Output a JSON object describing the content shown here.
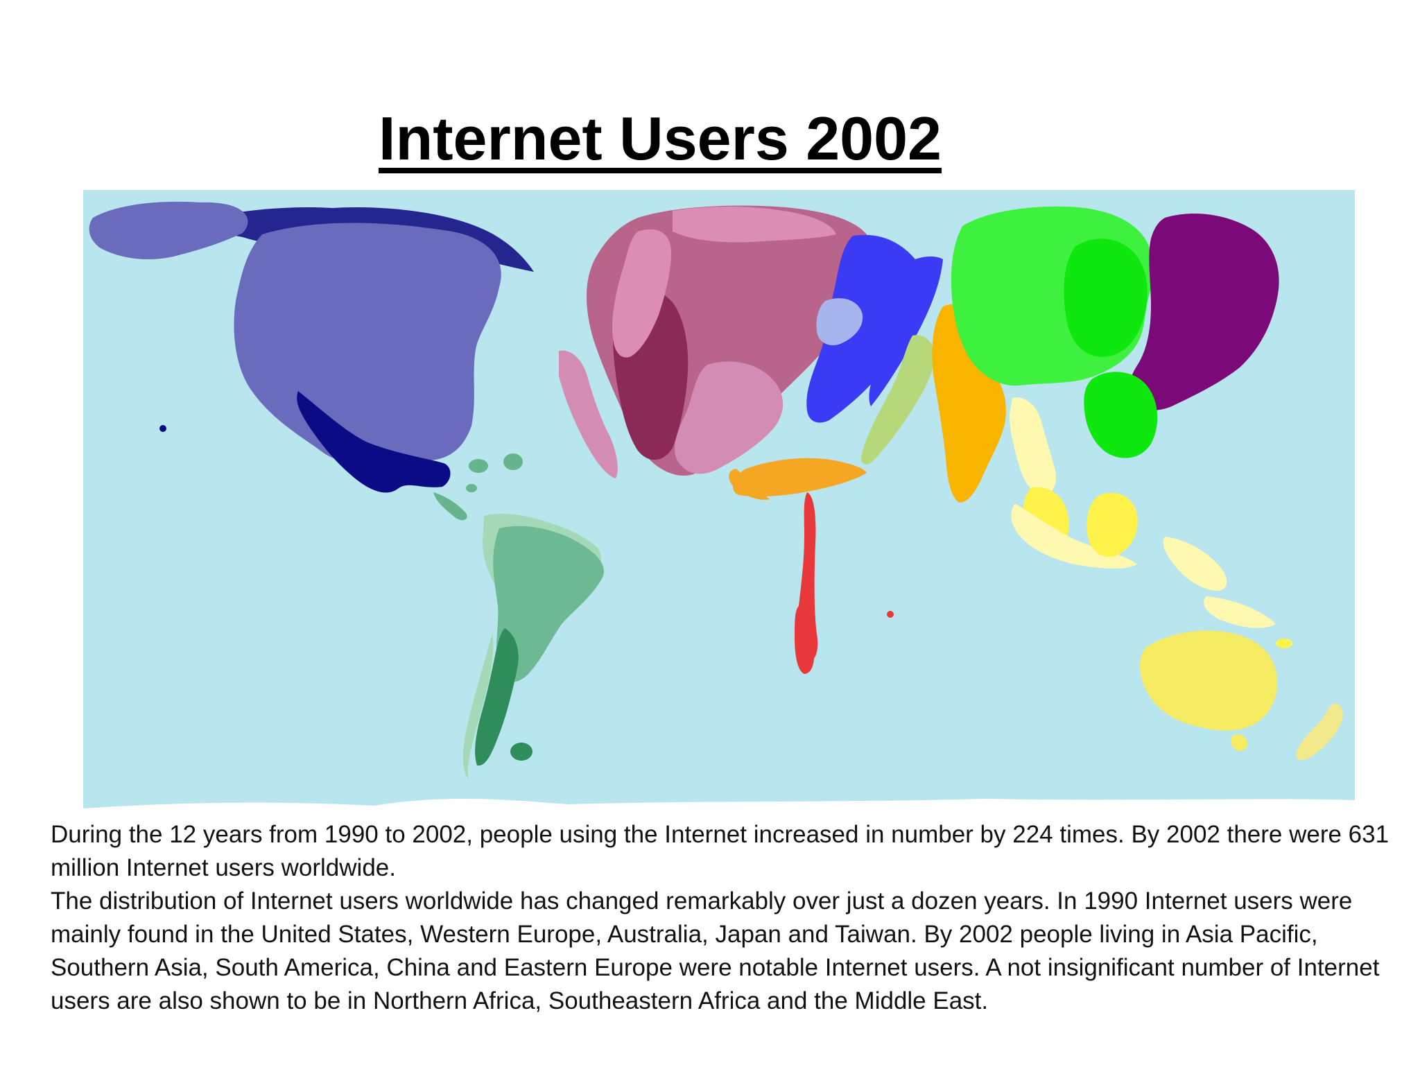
{
  "slide": {
    "title": "Internet Users 2002"
  },
  "map": {
    "subject": "world cartogram, territories resized by number of Internet users",
    "colors": {
      "ocean": "#b9e6ee",
      "north_america": "#6b6bbd",
      "canada_alaska": "#25258f",
      "mexico_central_america": "#0b0b86",
      "caribbean_small_states": "#67b58c",
      "south_america": "#6cb993",
      "south_america_light": "#a4d9b8",
      "south_america_dark": "#2f8d5c",
      "western_europe": "#b9648b",
      "western_europe_dark": "#8c2a57",
      "western_europe_light": "#d38cb3",
      "scandinavia": "#dc8db3",
      "eastern_europe": "#3b3bf5",
      "eastern_europe_light": "#a8b4ee",
      "middle_east": "#b7d87a",
      "northern_africa": "#f5a623",
      "southeastern_africa": "#e8383b",
      "southern_asia": "#f9b400",
      "china": "#3ef13e",
      "japan": "#7b0a78",
      "taiwan_korea": "#0ee80e",
      "asia_pacific": "#fff24a",
      "asia_pacific_light": "#fff8b0",
      "australia": "#f6ec63",
      "new_zealand": "#f3e98b",
      "antarctica": "#ffffff"
    }
  },
  "caption": {
    "paragraph_1": "During the 12 years from 1990 to 2002, people using the Internet increased in number by 224 times. By 2002 there were 631 million Internet users worldwide.",
    "paragraph_2": "The distribution of Internet users worldwide has changed remarkably over just a dozen years. In 1990 Internet users were mainly found in the United States, Western Europe, Australia, Japan and Taiwan. By 2002 people living in Asia Pacific, Southern Asia, South America, China and Eastern Europe were notable Internet users. A not insignificant number of Internet users are also shown to be in Northern Africa, Southeastern Africa and the Middle East."
  }
}
